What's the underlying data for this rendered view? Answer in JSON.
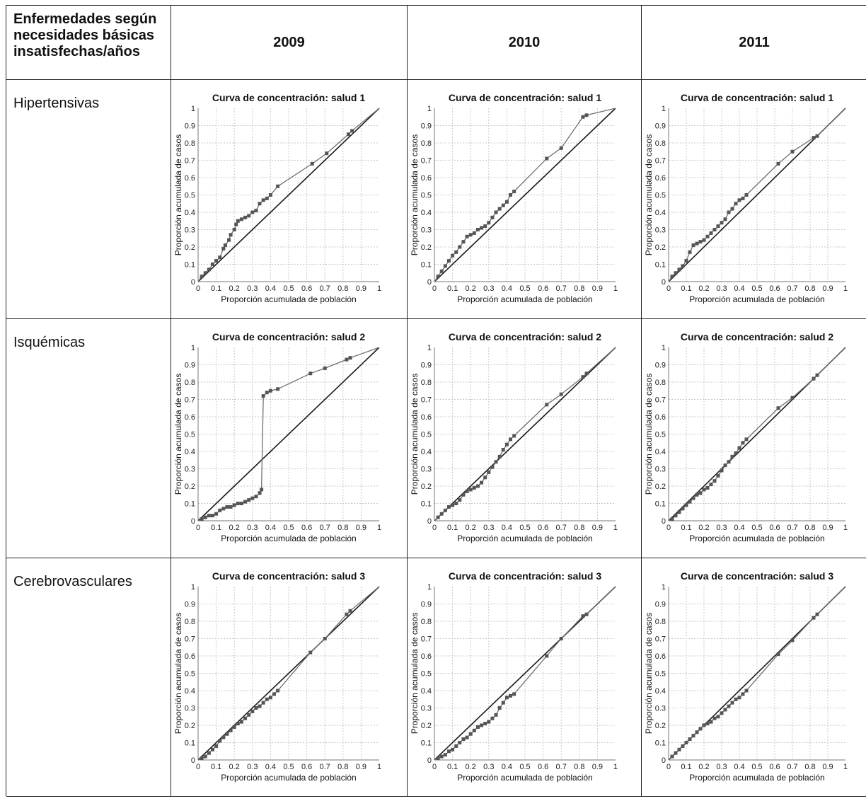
{
  "table": {
    "corner_label": "Enfermedades según necesidades básicas insatisfechas/años",
    "years": [
      "2009",
      "2010",
      "2011"
    ],
    "rows": [
      "Hipertensivas",
      "Isquémicas",
      "Cerebrovasculares"
    ]
  },
  "colors": {
    "curve": "#6f6f6f",
    "marker": "#555555",
    "diagonal": "#1a1a1a",
    "grid": "#c8c8c8"
  },
  "chart_data": [
    {
      "type": "line",
      "row": "Hipertensivas",
      "year": "2009",
      "title": "Curva de concentración: salud 1",
      "xlabel": "Proporción acumulada de población",
      "ylabel": "Proporción acumulada de casos",
      "xlim": [
        0,
        1
      ],
      "ylim": [
        0,
        1
      ],
      "xticks": [
        "0",
        "0.1",
        "0.2",
        "0.3",
        "0.4",
        "0.5",
        "0.6",
        "0.7",
        "0.8",
        "0.9",
        "1"
      ],
      "yticks": [
        "0",
        "0.1",
        "0.2",
        "0.3",
        "0.4",
        "0.5",
        "0.6",
        "0.7",
        "0.8",
        "0.9",
        "1"
      ],
      "grid": true,
      "series": [
        {
          "x": [
            0,
            0.02,
            0.04,
            0.06,
            0.08,
            0.1,
            0.12,
            0.14,
            0.15,
            0.17,
            0.18,
            0.2,
            0.21,
            0.22,
            0.24,
            0.26,
            0.28,
            0.3,
            0.32,
            0.34,
            0.36,
            0.38,
            0.4,
            0.44,
            0.63,
            0.71,
            0.83,
            0.85,
            1
          ],
          "y": [
            0,
            0.03,
            0.05,
            0.07,
            0.1,
            0.12,
            0.14,
            0.19,
            0.21,
            0.24,
            0.27,
            0.3,
            0.33,
            0.35,
            0.36,
            0.37,
            0.38,
            0.4,
            0.41,
            0.45,
            0.47,
            0.48,
            0.5,
            0.55,
            0.68,
            0.74,
            0.85,
            0.87,
            1
          ]
        },
        {
          "x": [
            0,
            1
          ],
          "y": [
            0,
            1
          ]
        }
      ]
    },
    {
      "type": "line",
      "row": "Hipertensivas",
      "year": "2010",
      "title": "Curva de concentración: salud 1",
      "xlabel": "Proporción acumulada de población",
      "ylabel": "Proporción acumulada de casos",
      "xlim": [
        0,
        1
      ],
      "ylim": [
        0,
        1
      ],
      "xticks": [
        "0",
        "0.1",
        "0.2",
        "0.3",
        "0.4",
        "0.5",
        "0.6",
        "0.7",
        "0.8",
        "0.9",
        "1"
      ],
      "yticks": [
        "0",
        "0.1",
        "0.2",
        "0.3",
        "0.4",
        "0.5",
        "0.6",
        "0.7",
        "0.8",
        "0.9",
        "1"
      ],
      "grid": true,
      "series": [
        {
          "x": [
            0,
            0.02,
            0.04,
            0.06,
            0.08,
            0.1,
            0.12,
            0.14,
            0.16,
            0.18,
            0.2,
            0.22,
            0.24,
            0.26,
            0.28,
            0.3,
            0.32,
            0.34,
            0.36,
            0.38,
            0.4,
            0.42,
            0.44,
            0.62,
            0.7,
            0.82,
            0.84,
            1
          ],
          "y": [
            0,
            0.03,
            0.06,
            0.09,
            0.12,
            0.15,
            0.17,
            0.2,
            0.23,
            0.26,
            0.27,
            0.28,
            0.3,
            0.31,
            0.32,
            0.34,
            0.37,
            0.4,
            0.42,
            0.44,
            0.46,
            0.5,
            0.52,
            0.71,
            0.77,
            0.95,
            0.96,
            1
          ]
        },
        {
          "x": [
            0,
            1
          ],
          "y": [
            0,
            1
          ]
        }
      ]
    },
    {
      "type": "line",
      "row": "Hipertensivas",
      "year": "2011",
      "title": "Curva de concentración: salud 1",
      "xlabel": "Proporción acumulada de población",
      "ylabel": "Proporción acumulada de casos",
      "xlim": [
        0,
        1
      ],
      "ylim": [
        0,
        1
      ],
      "xticks": [
        "0",
        "0.1",
        "0.2",
        "0.3",
        "0.4",
        "0.5",
        "0.6",
        "0.7",
        "0.8",
        "0.9",
        "1"
      ],
      "yticks": [
        "0",
        "0.1",
        "0.2",
        "0.3",
        "0.4",
        "0.5",
        "0.6",
        "0.7",
        "0.8",
        "0.9",
        "1"
      ],
      "grid": true,
      "series": [
        {
          "x": [
            0,
            0.02,
            0.04,
            0.06,
            0.08,
            0.1,
            0.12,
            0.14,
            0.16,
            0.18,
            0.2,
            0.22,
            0.24,
            0.26,
            0.28,
            0.3,
            0.32,
            0.34,
            0.36,
            0.38,
            0.4,
            0.42,
            0.44,
            0.62,
            0.7,
            0.82,
            0.84,
            1
          ],
          "y": [
            0,
            0.03,
            0.05,
            0.07,
            0.09,
            0.12,
            0.17,
            0.21,
            0.22,
            0.23,
            0.24,
            0.26,
            0.28,
            0.3,
            0.32,
            0.34,
            0.36,
            0.4,
            0.42,
            0.45,
            0.47,
            0.48,
            0.5,
            0.68,
            0.75,
            0.83,
            0.84,
            1
          ]
        },
        {
          "x": [
            0,
            1
          ],
          "y": [
            0,
            1
          ]
        }
      ]
    },
    {
      "type": "line",
      "row": "Isquémicas",
      "year": "2009",
      "title": "Curva de concentración: salud 2",
      "xlabel": "Proporción acumulada de población",
      "ylabel": "Proporción acumulada de casos",
      "xlim": [
        0,
        1
      ],
      "ylim": [
        0,
        1
      ],
      "xticks": [
        "0",
        "0.1",
        "0.2",
        "0.3",
        "0.4",
        "0.5",
        "0.6",
        "0.7",
        "0.8",
        "0.9",
        "1"
      ],
      "yticks": [
        "0",
        "0.1",
        "0.2",
        "0.3",
        "0.4",
        "0.5",
        "0.6",
        "0.7",
        "0.8",
        "0.9",
        "1"
      ],
      "grid": true,
      "series": [
        {
          "x": [
            0,
            0.02,
            0.04,
            0.06,
            0.08,
            0.1,
            0.12,
            0.14,
            0.16,
            0.18,
            0.2,
            0.22,
            0.24,
            0.26,
            0.28,
            0.3,
            0.32,
            0.34,
            0.35,
            0.36,
            0.38,
            0.4,
            0.44,
            0.62,
            0.7,
            0.82,
            0.84,
            1
          ],
          "y": [
            0,
            0.01,
            0.02,
            0.03,
            0.03,
            0.04,
            0.06,
            0.07,
            0.08,
            0.08,
            0.09,
            0.1,
            0.1,
            0.11,
            0.12,
            0.13,
            0.14,
            0.16,
            0.18,
            0.72,
            0.74,
            0.75,
            0.76,
            0.85,
            0.88,
            0.93,
            0.94,
            1
          ]
        },
        {
          "x": [
            0,
            1
          ],
          "y": [
            0,
            1
          ]
        }
      ]
    },
    {
      "type": "line",
      "row": "Isquémicas",
      "year": "2010",
      "title": "Curva de concentración: salud 2",
      "xlabel": "Proporción acumulada de población",
      "ylabel": "Proporción acumulada de casos",
      "xlim": [
        0,
        1
      ],
      "ylim": [
        0,
        1
      ],
      "xticks": [
        "0",
        "0.1",
        "0.2",
        "0.3",
        "0.4",
        "0.5",
        "0.6",
        "0.7",
        "0.8",
        "0.9",
        "1"
      ],
      "yticks": [
        "0",
        "0.1",
        "0.2",
        "0.3",
        "0.4",
        "0.5",
        "0.6",
        "0.7",
        "0.8",
        "0.9",
        "1"
      ],
      "grid": true,
      "series": [
        {
          "x": [
            0,
            0.02,
            0.04,
            0.06,
            0.08,
            0.1,
            0.12,
            0.14,
            0.16,
            0.18,
            0.2,
            0.22,
            0.24,
            0.26,
            0.28,
            0.3,
            0.32,
            0.34,
            0.36,
            0.38,
            0.4,
            0.42,
            0.44,
            0.62,
            0.7,
            0.82,
            0.84,
            1
          ],
          "y": [
            0,
            0.02,
            0.04,
            0.06,
            0.08,
            0.09,
            0.1,
            0.12,
            0.15,
            0.17,
            0.18,
            0.19,
            0.2,
            0.22,
            0.25,
            0.28,
            0.31,
            0.34,
            0.37,
            0.41,
            0.44,
            0.47,
            0.49,
            0.67,
            0.73,
            0.83,
            0.85,
            1
          ]
        },
        {
          "x": [
            0,
            1
          ],
          "y": [
            0,
            1
          ]
        }
      ]
    },
    {
      "type": "line",
      "row": "Isquémicas",
      "year": "2011",
      "title": "Curva de concentración: salud 2",
      "xlabel": "Proporción acumulada de población",
      "ylabel": "Proporción acumulada de casos",
      "xlim": [
        0,
        1
      ],
      "ylim": [
        0,
        1
      ],
      "xticks": [
        "0",
        "0.1",
        "0.2",
        "0.3",
        "0.4",
        "0.5",
        "0.6",
        "0.7",
        "0.8",
        "0.9",
        "1"
      ],
      "yticks": [
        "0",
        "0.1",
        "0.2",
        "0.3",
        "0.4",
        "0.5",
        "0.6",
        "0.7",
        "0.8",
        "0.9",
        "1"
      ],
      "grid": true,
      "series": [
        {
          "x": [
            0,
            0.02,
            0.04,
            0.06,
            0.08,
            0.1,
            0.12,
            0.14,
            0.16,
            0.18,
            0.2,
            0.22,
            0.24,
            0.26,
            0.28,
            0.3,
            0.32,
            0.34,
            0.36,
            0.38,
            0.4,
            0.42,
            0.44,
            0.62,
            0.7,
            0.82,
            0.84,
            1
          ],
          "y": [
            0,
            0.01,
            0.03,
            0.05,
            0.07,
            0.09,
            0.11,
            0.13,
            0.15,
            0.16,
            0.18,
            0.19,
            0.21,
            0.23,
            0.26,
            0.29,
            0.32,
            0.34,
            0.37,
            0.39,
            0.42,
            0.45,
            0.47,
            0.65,
            0.71,
            0.82,
            0.84,
            1
          ]
        },
        {
          "x": [
            0,
            1
          ],
          "y": [
            0,
            1
          ]
        }
      ]
    },
    {
      "type": "line",
      "row": "Cerebrovasculares",
      "year": "2009",
      "title": "Curva de concentración: salud 3",
      "xlabel": "Proporción acumulada de población",
      "ylabel": "Proporción acumulada de casos",
      "xlim": [
        0,
        1
      ],
      "ylim": [
        0,
        1
      ],
      "xticks": [
        "0",
        "0.1",
        "0.2",
        "0.3",
        "0.4",
        "0.5",
        "0.6",
        "0.7",
        "0.8",
        "0.9",
        "1"
      ],
      "yticks": [
        "0",
        "0.1",
        "0.2",
        "0.3",
        "0.4",
        "0.5",
        "0.6",
        "0.7",
        "0.8",
        "0.9",
        "1"
      ],
      "grid": true,
      "series": [
        {
          "x": [
            0,
            0.02,
            0.04,
            0.06,
            0.08,
            0.1,
            0.12,
            0.14,
            0.16,
            0.18,
            0.2,
            0.22,
            0.24,
            0.26,
            0.28,
            0.3,
            0.32,
            0.34,
            0.36,
            0.38,
            0.4,
            0.42,
            0.44,
            0.62,
            0.7,
            0.82,
            0.84,
            1
          ],
          "y": [
            0,
            0.01,
            0.02,
            0.04,
            0.06,
            0.08,
            0.11,
            0.13,
            0.15,
            0.17,
            0.19,
            0.21,
            0.22,
            0.24,
            0.26,
            0.28,
            0.3,
            0.31,
            0.33,
            0.35,
            0.36,
            0.38,
            0.4,
            0.62,
            0.7,
            0.84,
            0.86,
            1
          ]
        },
        {
          "x": [
            0,
            1
          ],
          "y": [
            0,
            1
          ]
        }
      ]
    },
    {
      "type": "line",
      "row": "Cerebrovasculares",
      "year": "2010",
      "title": "Curva de concentración: salud 3",
      "xlabel": "Proporción acumulada de población",
      "ylabel": "Proporción acumulada de casos",
      "xlim": [
        0,
        1
      ],
      "ylim": [
        0,
        1
      ],
      "xticks": [
        "0",
        "0.1",
        "0.2",
        "0.3",
        "0.4",
        "0.5",
        "0.6",
        "0.7",
        "0.8",
        "0.9",
        "1"
      ],
      "yticks": [
        "0",
        "0.1",
        "0.2",
        "0.3",
        "0.4",
        "0.5",
        "0.6",
        "0.7",
        "0.8",
        "0.9",
        "1"
      ],
      "grid": true,
      "series": [
        {
          "x": [
            0,
            0.02,
            0.04,
            0.06,
            0.08,
            0.1,
            0.12,
            0.14,
            0.16,
            0.18,
            0.2,
            0.22,
            0.24,
            0.26,
            0.28,
            0.3,
            0.32,
            0.34,
            0.36,
            0.38,
            0.4,
            0.42,
            0.44,
            0.62,
            0.7,
            0.82,
            0.84,
            1
          ],
          "y": [
            0,
            0.01,
            0.02,
            0.03,
            0.05,
            0.06,
            0.08,
            0.1,
            0.12,
            0.13,
            0.15,
            0.17,
            0.19,
            0.2,
            0.21,
            0.22,
            0.24,
            0.26,
            0.3,
            0.33,
            0.36,
            0.37,
            0.38,
            0.6,
            0.7,
            0.83,
            0.84,
            1
          ]
        },
        {
          "x": [
            0,
            1
          ],
          "y": [
            0,
            1
          ]
        }
      ]
    },
    {
      "type": "line",
      "row": "Cerebrovasculares",
      "year": "2011",
      "title": "Curva de concentración: salud 3",
      "xlabel": "Proporción acumulada de población",
      "ylabel": "Proporción acumulada de casos",
      "xlim": [
        0,
        1
      ],
      "ylim": [
        0,
        1
      ],
      "xticks": [
        "0",
        "0.1",
        "0.2",
        "0.3",
        "0.4",
        "0.5",
        "0.6",
        "0.7",
        "0.8",
        "0.9",
        "1"
      ],
      "yticks": [
        "0",
        "0.1",
        "0.2",
        "0.3",
        "0.4",
        "0.5",
        "0.6",
        "0.7",
        "0.8",
        "0.9",
        "1"
      ],
      "grid": true,
      "series": [
        {
          "x": [
            0,
            0.02,
            0.04,
            0.06,
            0.08,
            0.1,
            0.12,
            0.14,
            0.16,
            0.18,
            0.2,
            0.22,
            0.24,
            0.26,
            0.28,
            0.3,
            0.32,
            0.34,
            0.36,
            0.38,
            0.4,
            0.42,
            0.44,
            0.62,
            0.7,
            0.82,
            0.84,
            1
          ],
          "y": [
            0,
            0.02,
            0.04,
            0.06,
            0.08,
            0.1,
            0.12,
            0.14,
            0.16,
            0.18,
            0.2,
            0.21,
            0.22,
            0.24,
            0.25,
            0.27,
            0.29,
            0.31,
            0.33,
            0.35,
            0.36,
            0.38,
            0.4,
            0.61,
            0.69,
            0.82,
            0.84,
            1
          ]
        },
        {
          "x": [
            0,
            1
          ],
          "y": [
            0,
            1
          ]
        }
      ]
    }
  ]
}
